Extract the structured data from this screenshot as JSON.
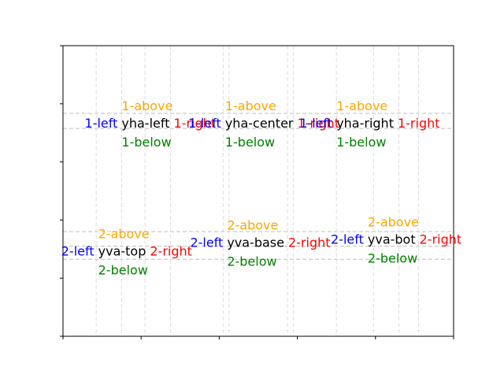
{
  "chart_data": {
    "type": "scatter",
    "title": "",
    "xlabel": "",
    "ylabel": "",
    "xlim": [
      0,
      1
    ],
    "ylim": [
      0,
      1
    ],
    "grid": false,
    "x_ticks": [
      0,
      0.2,
      0.4,
      0.6,
      0.8,
      1.0
    ],
    "y_ticks": [
      0,
      0.2,
      0.4,
      0.6,
      0.8,
      1.0
    ],
    "label_colors": {
      "main": "#000000",
      "left": "#0000ff",
      "right": "#ff0000",
      "above": "#ffa500",
      "below": "#008000",
      "guide": "#bdbdbd"
    },
    "groups": [
      {
        "name": "yha-left",
        "x": 0.15,
        "y": 0.73,
        "main": "yha-left",
        "left": "1-left",
        "right": "1-right",
        "above": "1-above",
        "below": "1-below"
      },
      {
        "name": "yha-center",
        "x": 0.415,
        "y": 0.73,
        "main": "yha-center",
        "left": "1-left",
        "right": "1-right",
        "above": "1-above",
        "below": "1-below"
      },
      {
        "name": "yha-right",
        "x": 0.7,
        "y": 0.73,
        "main": "yha-right",
        "left": "1-left",
        "right": "1-right",
        "above": "1-above",
        "below": "1-below"
      },
      {
        "name": "yva-top",
        "x": 0.09,
        "y": 0.29,
        "main": "yva-top",
        "left": "2-left",
        "right": "2-right",
        "above": "2-above",
        "below": "2-below"
      },
      {
        "name": "yva-base",
        "x": 0.42,
        "y": 0.32,
        "main": "yva-base",
        "left": "2-left",
        "right": "2-right",
        "above": "2-above",
        "below": "2-below"
      },
      {
        "name": "yva-bot",
        "x": 0.78,
        "y": 0.33,
        "main": "yva-bot",
        "left": "2-left",
        "right": "2-right",
        "above": "2-above",
        "below": "2-below"
      }
    ],
    "guide_lines": {
      "horizontal": [
        0.767,
        0.715,
        0.36,
        0.31,
        0.265
      ],
      "vertical": [
        0.085,
        0.15,
        0.21,
        0.275,
        0.41,
        0.425,
        0.575,
        0.59,
        0.7,
        0.795,
        0.86,
        0.91
      ]
    }
  }
}
